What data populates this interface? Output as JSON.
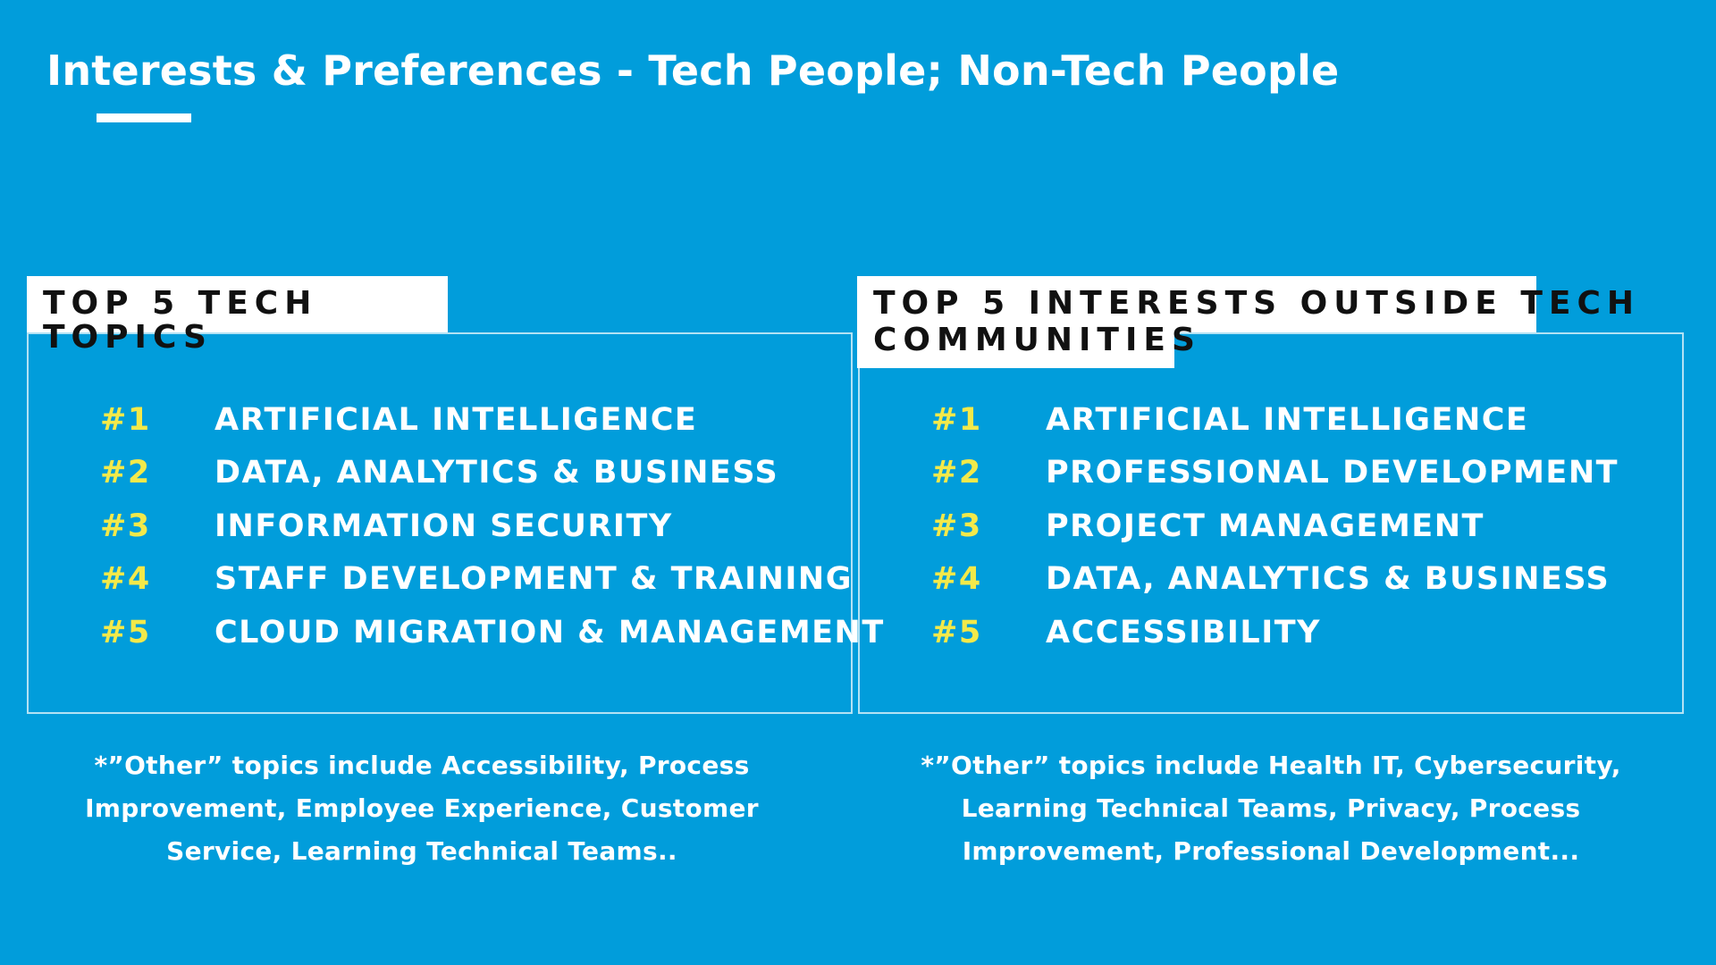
{
  "header": {
    "title": "Interests & Preferences - Tech People; Non-Tech People"
  },
  "left_panel": {
    "heading": "TOP 5 TECH TOPICS",
    "items": [
      {
        "rank": "#1",
        "label": "ARTIFICIAL INTELLIGENCE"
      },
      {
        "rank": "#2",
        "label": "DATA, ANALYTICS & BUSINESS"
      },
      {
        "rank": "#3",
        "label": "INFORMATION SECURITY"
      },
      {
        "rank": "#4",
        "label": "STAFF DEVELOPMENT & TRAINING"
      },
      {
        "rank": "#5",
        "label": "CLOUD MIGRATION & MANAGEMENT"
      }
    ],
    "footnote": "*”Other” topics include Accessibility, Process Improvement, Employee Experience, Customer Service, Learning Technical Teams.."
  },
  "right_panel": {
    "heading_line1": "TOP 5 INTERESTS OUTSIDE TECH",
    "heading_line2": "COMMUNITIES",
    "items": [
      {
        "rank": "#1",
        "label": "ARTIFICIAL INTELLIGENCE"
      },
      {
        "rank": "#2",
        "label": "PROFESSIONAL DEVELOPMENT"
      },
      {
        "rank": "#3",
        "label": "PROJECT MANAGEMENT"
      },
      {
        "rank": "#4",
        "label": "DATA, ANALYTICS & BUSINESS"
      },
      {
        "rank": "#5",
        "label": "ACCESSIBILITY"
      }
    ],
    "footnote": "*”Other” topics include Health IT, Cybersecurity, Learning Technical Teams, Privacy, Process Improvement, Professional Development..."
  },
  "colors": {
    "background": "#019ddb",
    "rank_accent": "#f3e94a",
    "text": "#ffffff",
    "heading_text": "#111111"
  }
}
